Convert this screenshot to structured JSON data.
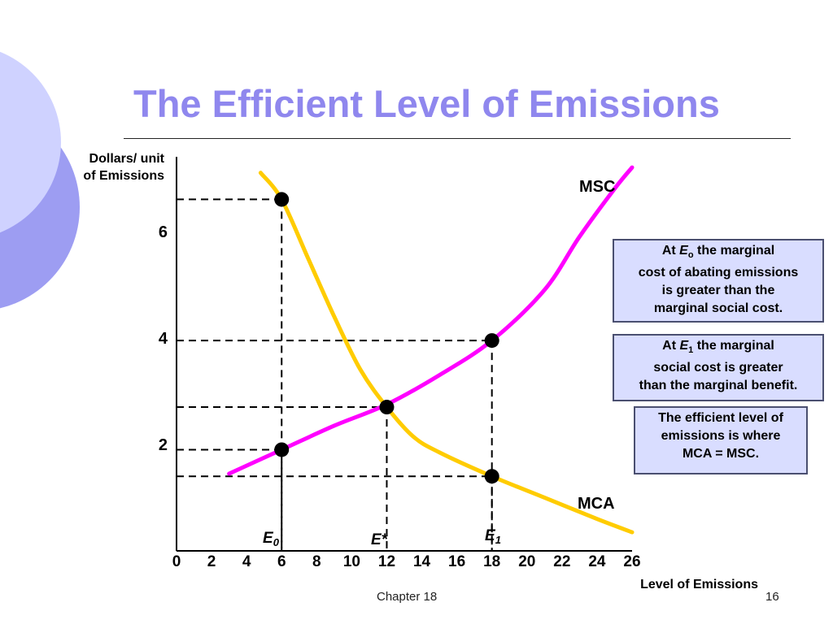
{
  "slide": {
    "title": "The Efficient Level of Emissions",
    "footer_chapter": "Chapter 18",
    "footer_page": "16"
  },
  "chart_data": {
    "type": "line",
    "ylabel": "Dollars/ unit of Emissions",
    "ylabel_lines": [
      "Dollars/ unit",
      "of Emissions"
    ],
    "xlabel": "Level of Emissions",
    "x_ticks": [
      0,
      2,
      4,
      6,
      8,
      10,
      12,
      14,
      16,
      18,
      20,
      22,
      24,
      26
    ],
    "y_ticks": [
      2,
      4,
      6
    ],
    "xlim": [
      0,
      26
    ],
    "ylim": [
      0,
      7.4
    ],
    "series": [
      {
        "name": "MSC",
        "color": "#ff00ff",
        "points": [
          [
            3,
            1.45
          ],
          [
            6,
            1.9
          ],
          [
            9,
            2.35
          ],
          [
            12,
            2.75
          ],
          [
            15,
            3.3
          ],
          [
            18,
            3.95
          ],
          [
            21,
            4.9
          ],
          [
            23,
            5.9
          ],
          [
            25,
            6.8
          ],
          [
            26,
            7.2
          ]
        ]
      },
      {
        "name": "MCA",
        "color": "#ffcc00",
        "points": [
          [
            4.8,
            7.1
          ],
          [
            6,
            6.6
          ],
          [
            7.5,
            5.5
          ],
          [
            9,
            4.4
          ],
          [
            10.5,
            3.4
          ],
          [
            12,
            2.7
          ],
          [
            13.5,
            2.15
          ],
          [
            15,
            1.85
          ],
          [
            18,
            1.4
          ],
          [
            21,
            1.0
          ],
          [
            24,
            0.6
          ],
          [
            26,
            0.35
          ]
        ]
      }
    ],
    "points": [
      {
        "label": "E0",
        "x": 6,
        "y": 6.6
      },
      {
        "label": "E0",
        "x": 6,
        "y": 1.9
      },
      {
        "label": "E*",
        "x": 12,
        "y": 2.7
      },
      {
        "label": "E1",
        "x": 18,
        "y": 3.95
      },
      {
        "label": "E1",
        "x": 18,
        "y": 1.4
      }
    ],
    "annotations": {
      "msc": "MSC",
      "mca": "MCA",
      "e0_base": "E",
      "e0_sub": "0",
      "e_star": "E*",
      "e1_base": "E",
      "e1_sub": "1"
    }
  },
  "notes": {
    "n1": {
      "l1_pre": "At ",
      "l1_var": "E",
      "l1_sub": "o",
      "l1_post": "  the marginal",
      "rest": [
        "cost of abating emissions",
        "is greater than the",
        "marginal social cost."
      ]
    },
    "n2": {
      "l1_pre": "At ",
      "l1_var": "E",
      "l1_sub": "1",
      "l1_post": "  the marginal",
      "rest": [
        "social cost is greater",
        "than the marginal benefit."
      ]
    },
    "n3": {
      "lines": [
        "The efficient level of",
        "emissions is where",
        "MCA = MSC."
      ]
    }
  },
  "colors": {
    "title": "#8f87ee",
    "msc": "#ff00ff",
    "mca": "#ffcc00",
    "note_bg": "#d9ddff",
    "deco_light": "#cfd2ff",
    "deco_dark": "#9d9df2"
  }
}
